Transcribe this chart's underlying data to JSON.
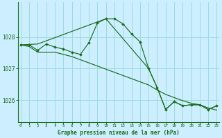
{
  "background_color": "#cceeff",
  "grid_color": "#99dddd",
  "line_color": "#1a6b1a",
  "xlabel": "Graphe pression niveau de la mer (hPa)",
  "yticks": [
    1026,
    1027,
    1028
  ],
  "xticks": [
    0,
    1,
    2,
    3,
    4,
    5,
    6,
    7,
    8,
    9,
    10,
    11,
    12,
    13,
    14,
    15,
    16,
    17,
    18,
    19,
    20,
    21,
    22,
    23
  ],
  "line1_x": [
    0,
    1,
    2,
    3,
    4,
    5,
    6,
    7,
    8,
    9,
    10,
    11,
    12,
    13,
    14,
    15,
    16,
    17,
    18,
    19,
    20,
    21,
    22,
    23
  ],
  "line1_y": [
    1027.75,
    1027.75,
    1027.58,
    1027.78,
    1027.68,
    1027.62,
    1027.52,
    1027.45,
    1027.82,
    1028.45,
    1028.58,
    1028.58,
    1028.42,
    1028.1,
    1027.85,
    1027.0,
    1026.4,
    1025.7,
    1025.95,
    1025.82,
    1025.85,
    1025.85,
    1025.7,
    1025.82
  ],
  "line2_x": [
    0,
    1,
    2,
    3,
    4,
    5,
    6,
    7,
    8,
    9,
    10,
    11,
    12,
    13,
    14,
    15,
    16,
    17,
    18,
    19,
    20,
    21,
    22,
    23
  ],
  "line2_y": [
    1027.75,
    1027.7,
    1027.52,
    1027.52,
    1027.52,
    1027.45,
    1027.38,
    1027.28,
    1027.18,
    1027.08,
    1026.98,
    1026.88,
    1026.78,
    1026.68,
    1026.58,
    1026.48,
    1026.32,
    1026.18,
    1026.08,
    1025.98,
    1025.9,
    1025.85,
    1025.75,
    1025.68
  ],
  "line3_x": [
    0,
    2,
    10,
    15,
    16,
    17,
    18,
    19,
    20,
    21,
    22,
    23
  ],
  "line3_y": [
    1027.75,
    1027.78,
    1028.58,
    1027.0,
    1026.4,
    1025.7,
    1025.95,
    1025.82,
    1025.85,
    1025.85,
    1025.7,
    1025.82
  ],
  "ylim": [
    1025.3,
    1029.1
  ],
  "xlim": [
    -0.3,
    23.3
  ]
}
